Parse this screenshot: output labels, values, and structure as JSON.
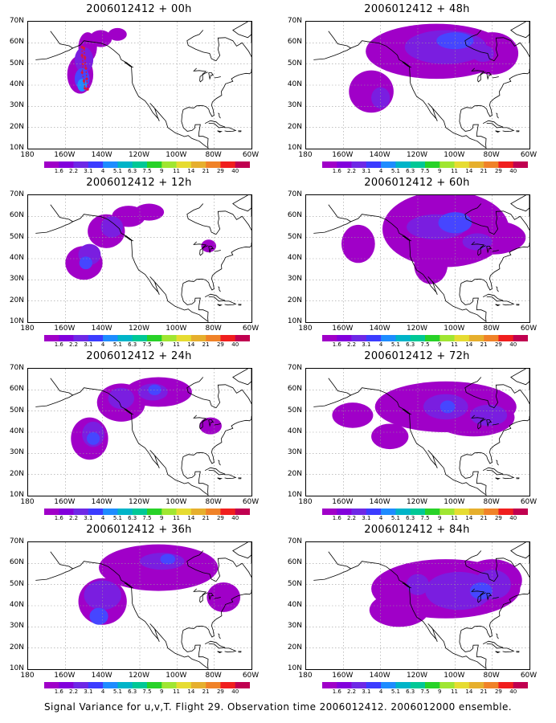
{
  "caption": "Signal Variance for u,v,T. Flight 29. Observation time 2006012412. 2006012000 ensemble.",
  "panels": [
    {
      "title": "2006012412 + 00h"
    },
    {
      "title": "2006012412 + 48h"
    },
    {
      "title": "2006012412 + 12h"
    },
    {
      "title": "2006012412 + 60h"
    },
    {
      "title": "2006012412 + 24h"
    },
    {
      "title": "2006012412 + 72h"
    },
    {
      "title": "2006012412 + 36h"
    },
    {
      "title": "2006012412 + 84h"
    }
  ],
  "axes": {
    "lat_labels": [
      "70N",
      "60N",
      "50N",
      "40N",
      "30N",
      "20N",
      "10N"
    ],
    "lon_labels": [
      "180",
      "160W",
      "140W",
      "120W",
      "100W",
      "80W",
      "60W"
    ]
  },
  "colorbar": {
    "labels": [
      "1.6",
      "2.2",
      "3.1",
      "4",
      "5.1",
      "6.3",
      "7.5",
      "9",
      "11",
      "14",
      "21",
      "29",
      "40"
    ],
    "colors": [
      "#a000c8",
      "#8200dc",
      "#6e28e6",
      "#3c3cff",
      "#1e8cff",
      "#00b4c8",
      "#00c896",
      "#28d228",
      "#a0e632",
      "#e6dc32",
      "#e6af2d",
      "#f08228",
      "#f01e1e",
      "#c00050"
    ]
  },
  "colors": {
    "land_outline": "#000000",
    "grid": "#9a9a9a",
    "level1": "#a000c8",
    "level2": "#7a1ee0",
    "level3": "#4646ff",
    "level4": "#1e8cff",
    "level5": "#00b4c8",
    "obs_track": "#dc143c"
  }
}
